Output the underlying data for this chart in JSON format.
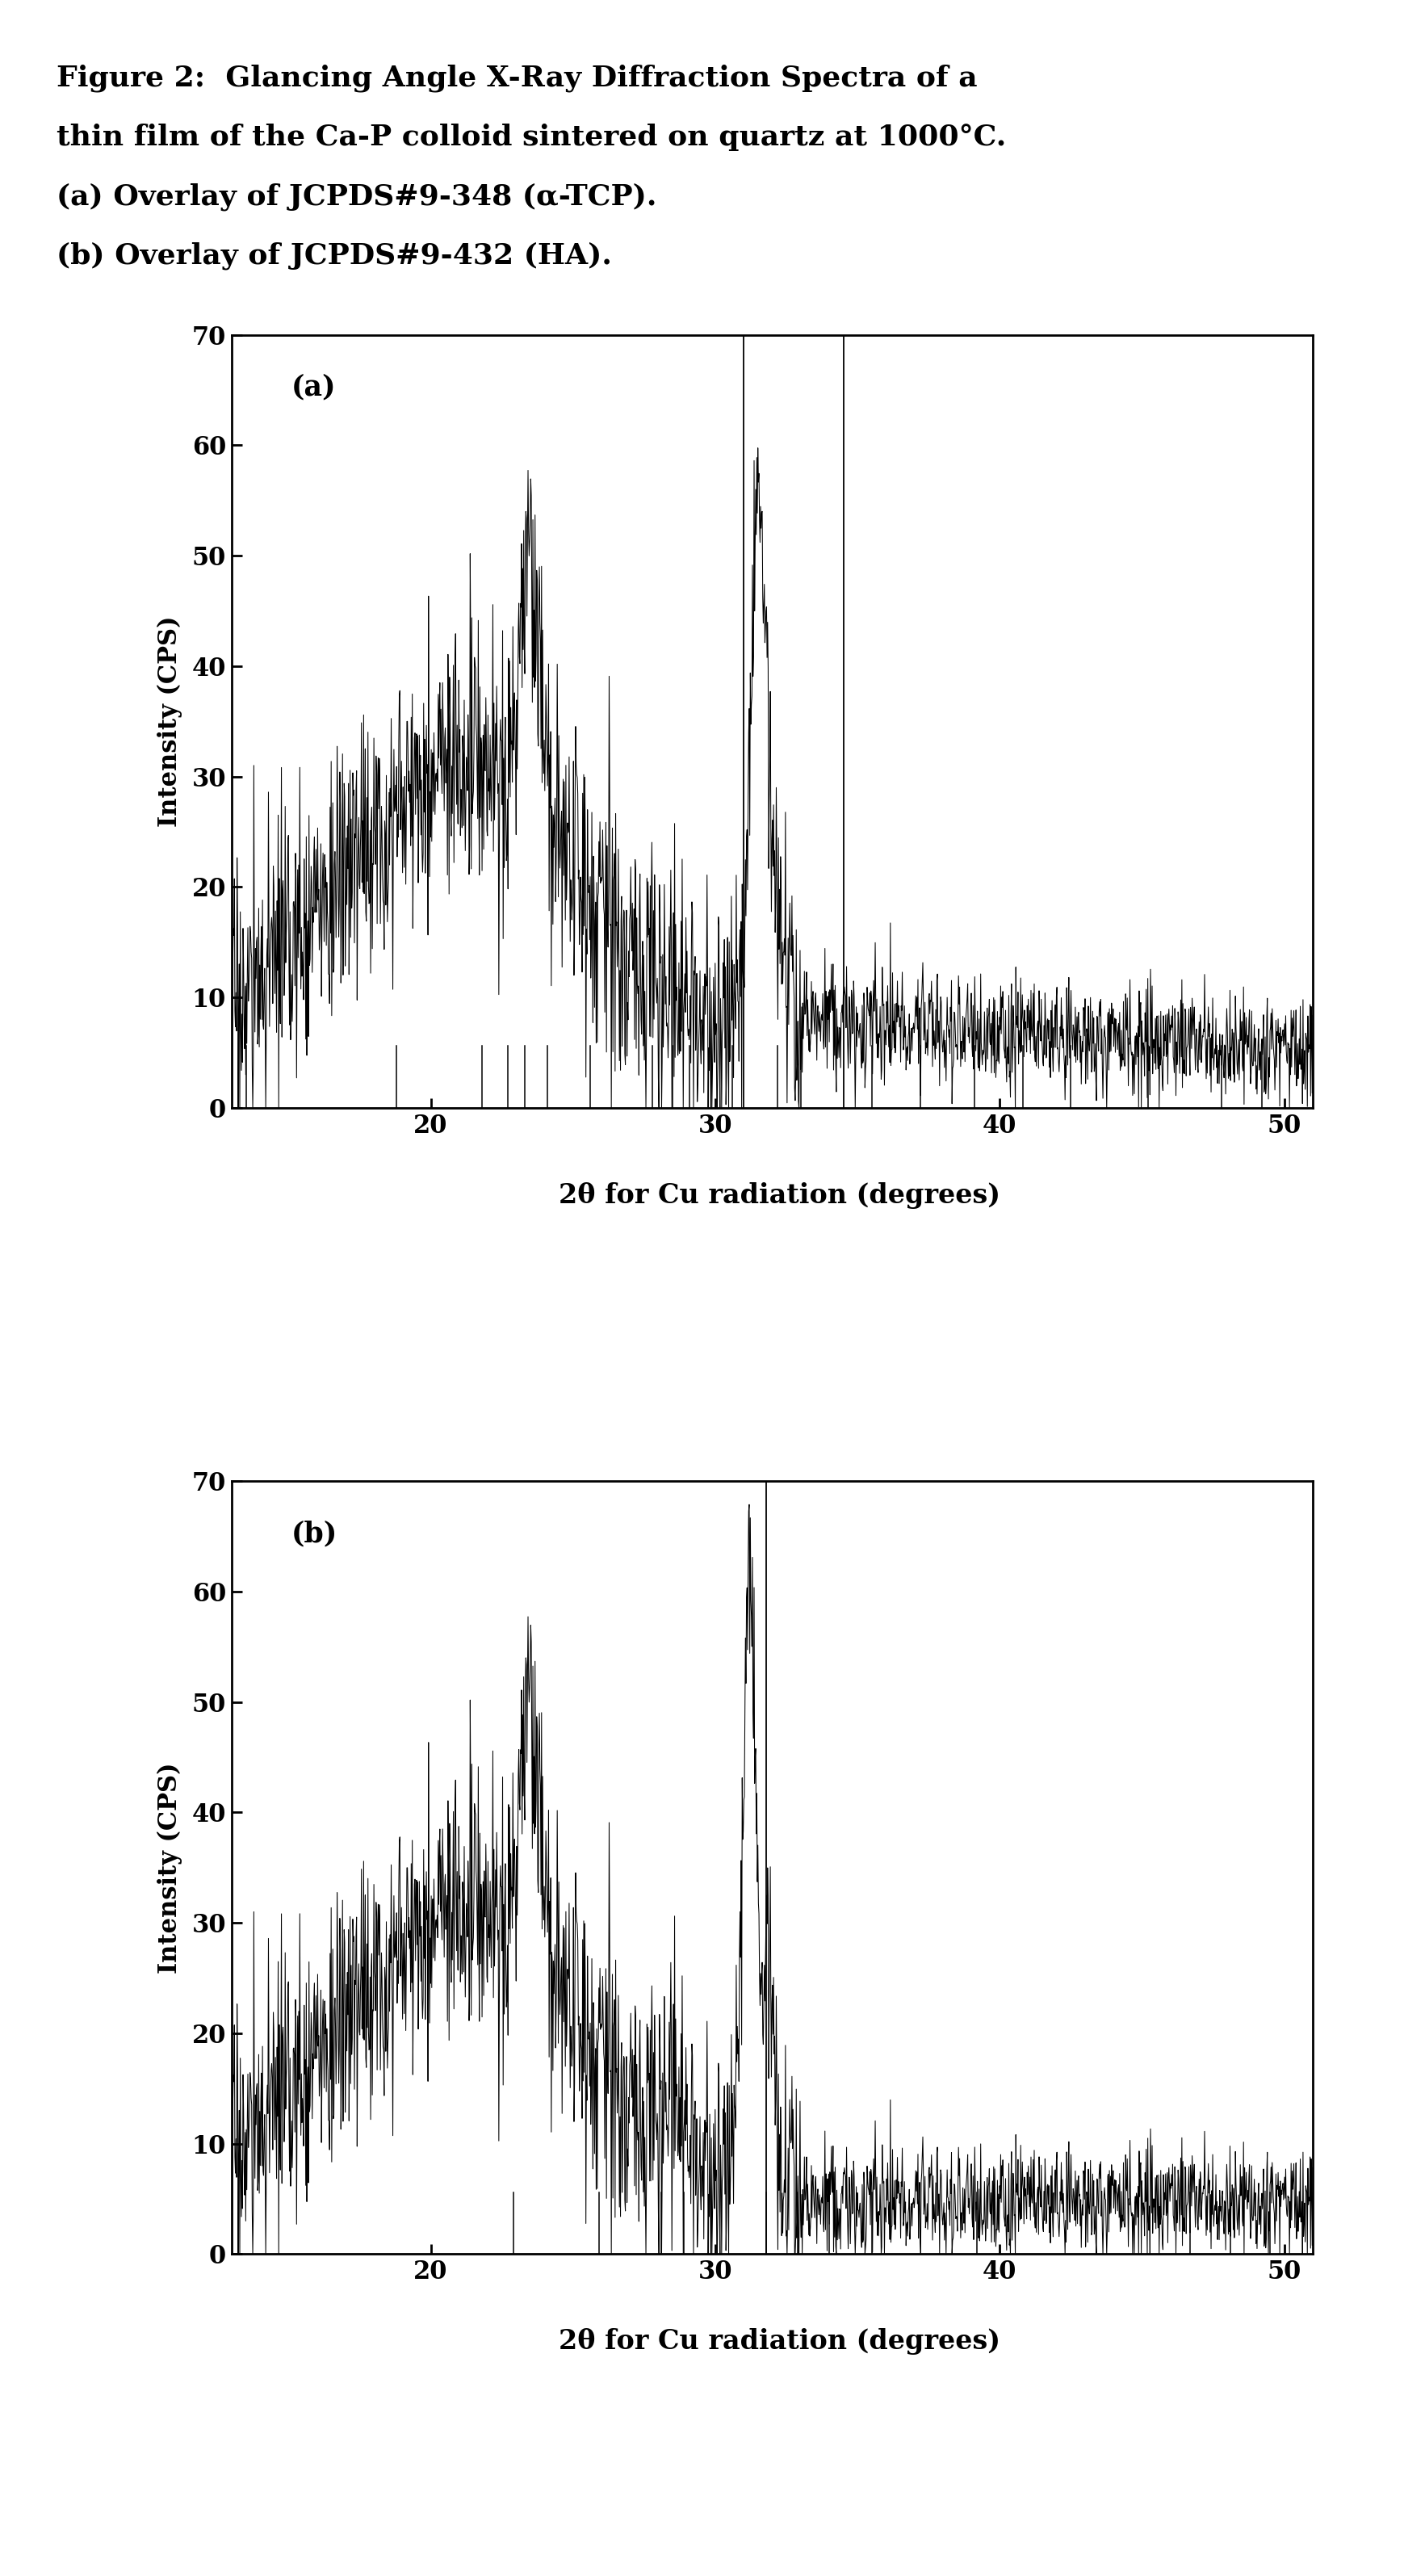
{
  "title_line1": "Figure 2:  Glancing Angle X-Ray Diffraction Spectra of a",
  "title_line2": "thin film of the Ca-P colloid sintered on quartz at 1000°C.",
  "title_line3": "(a) Overlay of JCPDS#9-348 (α-TCP).",
  "title_line4": "(b) Overlay of JCPDS#9-432 (HA).",
  "xlabel": "2θ for Cu radiation (degrees)",
  "ylabel": "Intensity (CPS)",
  "xlim": [
    13,
    51
  ],
  "ylim": [
    0,
    70
  ],
  "yticks": [
    0,
    10,
    20,
    30,
    40,
    50,
    60,
    70
  ],
  "xticks": [
    20,
    30,
    40,
    50
  ],
  "panel_a_label": "(a)",
  "panel_b_label": "(b)",
  "vlines_a": [
    31.0,
    34.5
  ],
  "vlines_b": [
    31.8
  ],
  "ref_lines_a": [
    13.5,
    18.8,
    21.8,
    22.7,
    23.3,
    24.1,
    25.6,
    27.8,
    28.5,
    29.1,
    30.6,
    32.2,
    33.0,
    35.5,
    37.2,
    39.1,
    40.8,
    42.5,
    45.2,
    47.8,
    49.2
  ],
  "ref_lines_b": [
    22.9,
    25.9,
    28.1,
    28.9,
    31.8,
    32.9,
    34.0,
    35.5,
    39.2,
    46.7,
    48.1,
    49.5
  ],
  "background_color": "#ffffff",
  "line_color": "#000000"
}
